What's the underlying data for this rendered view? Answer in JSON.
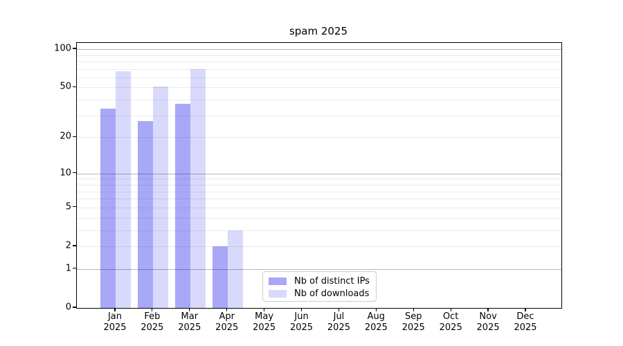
{
  "chart_data": {
    "type": "bar",
    "title": "spam 2025",
    "categories": [
      "Jan",
      "Feb",
      "Mar",
      "Apr",
      "May",
      "Jun",
      "Jul",
      "Aug",
      "Sep",
      "Oct",
      "Nov",
      "Dec"
    ],
    "category_year": "2025",
    "series": [
      {
        "name": "Nb of distinct IPs",
        "color": "rgba(0,0,232,0.34)",
        "values": [
          34,
          27,
          37,
          2,
          0,
          0,
          0,
          0,
          0,
          0,
          0,
          0
        ]
      },
      {
        "name": "Nb of downloads",
        "color": "rgba(0,0,232,0.15)",
        "values": [
          67,
          51,
          70,
          3,
          0,
          0,
          0,
          0,
          0,
          0,
          0,
          0
        ]
      }
    ],
    "xlabel": "",
    "ylabel": "",
    "yscale": "log1p",
    "ylim": [
      0,
      112
    ],
    "y_tick_values": [
      0,
      1,
      2,
      5,
      10,
      20,
      50,
      100
    ],
    "y_tick_labels": [
      "0",
      "1",
      "2",
      "5",
      "10",
      "20",
      "50",
      "100"
    ],
    "major_gridlines": [
      1,
      10,
      100
    ],
    "minor_gridlines": [
      2,
      3,
      4,
      5,
      6,
      7,
      8,
      9,
      20,
      30,
      40,
      50,
      60,
      70,
      80,
      90
    ],
    "grid": true,
    "legend": {
      "position": "lower-center",
      "entries": [
        "Nb of distinct IPs",
        "Nb of downloads"
      ]
    },
    "colors": {
      "distinct_ips_rendered": "#aaaaf7",
      "downloads_rendered": "#d9d9f8",
      "major_grid": "#b4b4b4",
      "minor_grid": "#eaeaea",
      "spine": "#000000",
      "background": "#ffffff"
    }
  }
}
